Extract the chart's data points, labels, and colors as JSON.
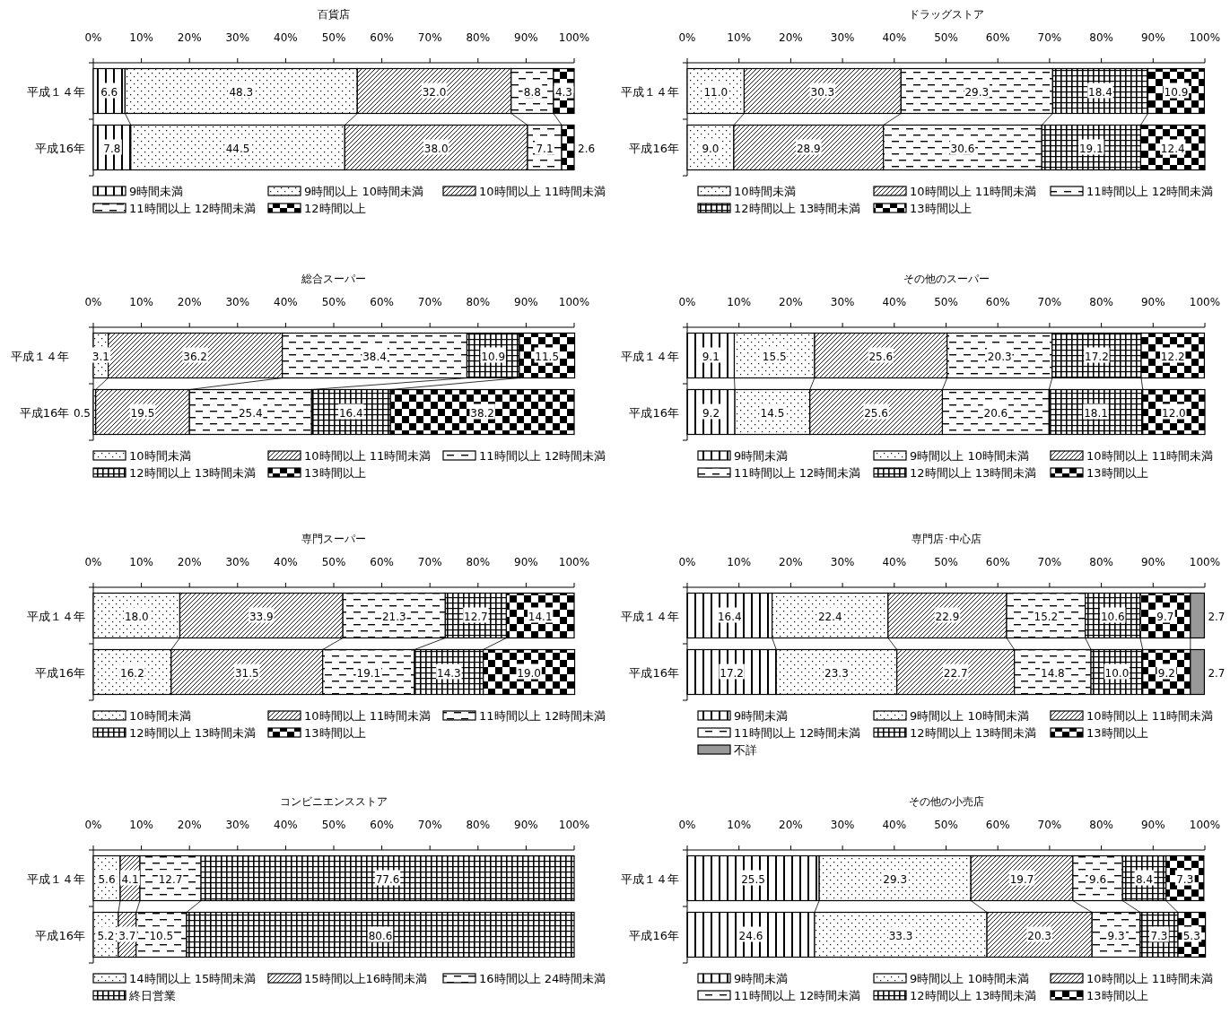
{
  "chart_data": [
    {
      "type": "bar",
      "orientation": "horizontal",
      "stacked": true,
      "title": "百貨店",
      "categories": [
        "平成１４年",
        "平成16年"
      ],
      "xlim": [
        0,
        100
      ],
      "xticks": [
        {
          "value": 0,
          "label": "0%"
        },
        {
          "value": 10,
          "label": "10%"
        },
        {
          "value": 20,
          "label": "20%"
        },
        {
          "value": 30,
          "label": "30%"
        },
        {
          "value": 40,
          "label": "40%"
        },
        {
          "value": 50,
          "label": "50%"
        },
        {
          "value": 60,
          "label": "60%"
        },
        {
          "value": 70,
          "label": "70%"
        },
        {
          "value": 80,
          "label": "80%"
        },
        {
          "value": 90,
          "label": "90%"
        },
        {
          "value": 100,
          "label": "100%"
        }
      ],
      "legend": "bottom",
      "series": [
        {
          "name": "9時間未満",
          "color": "#000000",
          "values": [
            6.6,
            7.8
          ],
          "value_labels": [
            "6.6",
            "7.8"
          ]
        },
        {
          "name": "9時間以上 10時間未満",
          "color": "#000000",
          "values": [
            48.3,
            44.5
          ],
          "value_labels": [
            "48.3",
            "44.5"
          ]
        },
        {
          "name": "10時間以上 11時間未満",
          "color": "#000000",
          "values": [
            32.0,
            38.0
          ],
          "value_labels": [
            "32.0",
            "38.0"
          ]
        },
        {
          "name": "11時間以上 12時間未満",
          "color": "#000000",
          "values": [
            8.8,
            7.1
          ],
          "value_labels": [
            "8.8",
            "7.1"
          ]
        },
        {
          "name": "12時間以上",
          "color": "#000000",
          "values": [
            4.3,
            2.6
          ],
          "value_labels": [
            "4.3",
            "2.6"
          ]
        }
      ]
    },
    {
      "type": "bar",
      "orientation": "horizontal",
      "stacked": true,
      "title": "ドラッグストア",
      "categories": [
        "平成１４年",
        "平成16年"
      ],
      "xlim": [
        0,
        100
      ],
      "xticks": [
        {
          "value": 0,
          "label": "0%"
        },
        {
          "value": 10,
          "label": "10%"
        },
        {
          "value": 20,
          "label": "20%"
        },
        {
          "value": 30,
          "label": "30%"
        },
        {
          "value": 40,
          "label": "40%"
        },
        {
          "value": 50,
          "label": "50%"
        },
        {
          "value": 60,
          "label": "60%"
        },
        {
          "value": 70,
          "label": "70%"
        },
        {
          "value": 80,
          "label": "80%"
        },
        {
          "value": 90,
          "label": "90%"
        },
        {
          "value": 100,
          "label": "100%"
        }
      ],
      "legend": "bottom",
      "series": [
        {
          "name": "10時間未満",
          "color": "#000000",
          "values": [
            11.0,
            9.0
          ],
          "value_labels": [
            "11.0",
            "9.0"
          ]
        },
        {
          "name": "10時間以上 11時間未満",
          "color": "#000000",
          "values": [
            30.3,
            28.9
          ],
          "value_labels": [
            "30.3",
            "28.9"
          ]
        },
        {
          "name": "11時間以上 12時間未満",
          "color": "#000000",
          "values": [
            29.3,
            30.6
          ],
          "value_labels": [
            "29.3",
            "30.6"
          ]
        },
        {
          "name": "12時間以上 13時間未満",
          "color": "#000000",
          "values": [
            18.4,
            19.1
          ],
          "value_labels": [
            "18.4",
            "19.1"
          ]
        },
        {
          "name": "13時間以上",
          "color": "#000000",
          "values": [
            10.9,
            12.4
          ],
          "value_labels": [
            "10.9",
            "12.4"
          ]
        }
      ]
    },
    {
      "type": "bar",
      "orientation": "horizontal",
      "stacked": true,
      "title": "総合スーパー",
      "categories": [
        "平成１４年",
        "平成16年"
      ],
      "xlim": [
        0,
        100
      ],
      "xticks": [
        {
          "value": 0,
          "label": "0%"
        },
        {
          "value": 10,
          "label": "10%"
        },
        {
          "value": 20,
          "label": "20%"
        },
        {
          "value": 30,
          "label": "30%"
        },
        {
          "value": 40,
          "label": "40%"
        },
        {
          "value": 50,
          "label": "50%"
        },
        {
          "value": 60,
          "label": "60%"
        },
        {
          "value": 70,
          "label": "70%"
        },
        {
          "value": 80,
          "label": "80%"
        },
        {
          "value": 90,
          "label": "90%"
        },
        {
          "value": 100,
          "label": "100%"
        }
      ],
      "legend": "bottom",
      "series": [
        {
          "name": "10時間未満",
          "color": "#000000",
          "values": [
            3.1,
            0.5
          ],
          "value_labels": [
            "3.1",
            "0.5"
          ]
        },
        {
          "name": "10時間以上 11時間未満",
          "color": "#000000",
          "values": [
            36.2,
            19.5
          ],
          "value_labels": [
            "36.2",
            "19.5"
          ]
        },
        {
          "name": "11時間以上 12時間未満",
          "color": "#000000",
          "values": [
            38.4,
            25.4
          ],
          "value_labels": [
            "38.4",
            "25.4"
          ]
        },
        {
          "name": "12時間以上 13時間未満",
          "color": "#000000",
          "values": [
            10.9,
            16.4
          ],
          "value_labels": [
            "10.9",
            "16.4"
          ]
        },
        {
          "name": "13時間以上",
          "color": "#000000",
          "values": [
            11.5,
            38.2
          ],
          "value_labels": [
            "11.5",
            "38.2"
          ]
        }
      ]
    },
    {
      "type": "bar",
      "orientation": "horizontal",
      "stacked": true,
      "title": "その他のスーパー",
      "categories": [
        "平成１４年",
        "平成16年"
      ],
      "xlim": [
        0,
        100
      ],
      "xticks": [
        {
          "value": 0,
          "label": "0%"
        },
        {
          "value": 10,
          "label": "10%"
        },
        {
          "value": 20,
          "label": "20%"
        },
        {
          "value": 30,
          "label": "30%"
        },
        {
          "value": 40,
          "label": "40%"
        },
        {
          "value": 50,
          "label": "50%"
        },
        {
          "value": 60,
          "label": "60%"
        },
        {
          "value": 70,
          "label": "70%"
        },
        {
          "value": 80,
          "label": "80%"
        },
        {
          "value": 90,
          "label": "90%"
        },
        {
          "value": 100,
          "label": "100%"
        }
      ],
      "legend": "bottom",
      "series": [
        {
          "name": "9時間未満",
          "color": "#000000",
          "values": [
            9.1,
            9.2
          ],
          "value_labels": [
            "9.1",
            "9.2"
          ]
        },
        {
          "name": "9時間以上 10時間未満",
          "color": "#000000",
          "values": [
            15.5,
            14.5
          ],
          "value_labels": [
            "15.5",
            "14.5"
          ]
        },
        {
          "name": "10時間以上 11時間未満",
          "color": "#000000",
          "values": [
            25.6,
            25.6
          ],
          "value_labels": [
            "25.6",
            "25.6"
          ]
        },
        {
          "name": "11時間以上 12時間未満",
          "color": "#000000",
          "values": [
            20.3,
            20.6
          ],
          "value_labels": [
            "20.3",
            "20.6"
          ]
        },
        {
          "name": "12時間以上 13時間未満",
          "color": "#000000",
          "values": [
            17.2,
            18.1
          ],
          "value_labels": [
            "17.2",
            "18.1"
          ]
        },
        {
          "name": "13時間以上",
          "color": "#000000",
          "values": [
            12.2,
            12.0
          ],
          "value_labels": [
            "12.2",
            "12.0"
          ]
        }
      ]
    },
    {
      "type": "bar",
      "orientation": "horizontal",
      "stacked": true,
      "title": "専門スーパー",
      "categories": [
        "平成１４年",
        "平成16年"
      ],
      "xlim": [
        0,
        100
      ],
      "xticks": [
        {
          "value": 0,
          "label": "0%"
        },
        {
          "value": 10,
          "label": "10%"
        },
        {
          "value": 20,
          "label": "20%"
        },
        {
          "value": 30,
          "label": "30%"
        },
        {
          "value": 40,
          "label": "40%"
        },
        {
          "value": 50,
          "label": "50%"
        },
        {
          "value": 60,
          "label": "60%"
        },
        {
          "value": 70,
          "label": "70%"
        },
        {
          "value": 80,
          "label": "80%"
        },
        {
          "value": 90,
          "label": "90%"
        },
        {
          "value": 100,
          "label": "100%"
        }
      ],
      "legend": "bottom",
      "series": [
        {
          "name": "10時間未満",
          "color": "#000000",
          "values": [
            18.0,
            16.2
          ],
          "value_labels": [
            "18.0",
            "16.2"
          ]
        },
        {
          "name": "10時間以上 11時間未満",
          "color": "#000000",
          "values": [
            33.9,
            31.5
          ],
          "value_labels": [
            "33.9",
            "31.5"
          ]
        },
        {
          "name": "11時間以上 12時間未満",
          "color": "#000000",
          "values": [
            21.3,
            19.1
          ],
          "value_labels": [
            "21.3",
            "19.1"
          ]
        },
        {
          "name": "12時間以上 13時間未満",
          "color": "#000000",
          "values": [
            12.7,
            14.3
          ],
          "value_labels": [
            "12.7",
            "14.3"
          ]
        },
        {
          "name": "13時間以上",
          "color": "#000000",
          "values": [
            14.1,
            19.0
          ],
          "value_labels": [
            "14.1",
            "19.0"
          ]
        }
      ]
    },
    {
      "type": "bar",
      "orientation": "horizontal",
      "stacked": true,
      "title": "専門店･中心店",
      "categories": [
        "平成１４年",
        "平成16年"
      ],
      "xlim": [
        0,
        100
      ],
      "xticks": [
        {
          "value": 0,
          "label": "0%"
        },
        {
          "value": 10,
          "label": "10%"
        },
        {
          "value": 20,
          "label": "20%"
        },
        {
          "value": 30,
          "label": "30%"
        },
        {
          "value": 40,
          "label": "40%"
        },
        {
          "value": 50,
          "label": "50%"
        },
        {
          "value": 60,
          "label": "60%"
        },
        {
          "value": 70,
          "label": "70%"
        },
        {
          "value": 80,
          "label": "80%"
        },
        {
          "value": 90,
          "label": "90%"
        },
        {
          "value": 100,
          "label": "100%"
        }
      ],
      "legend": "bottom",
      "series": [
        {
          "name": "9時間未満",
          "color": "#000000",
          "values": [
            16.4,
            17.2
          ],
          "value_labels": [
            "16.4",
            "17.2"
          ]
        },
        {
          "name": "9時間以上 10時間未満",
          "color": "#000000",
          "values": [
            22.4,
            23.3
          ],
          "value_labels": [
            "22.4",
            "23.3"
          ]
        },
        {
          "name": "10時間以上 11時間未満",
          "color": "#000000",
          "values": [
            22.9,
            22.7
          ],
          "value_labels": [
            "22.9",
            "22.7"
          ]
        },
        {
          "name": "11時間以上 12時間未満",
          "color": "#000000",
          "values": [
            15.2,
            14.8
          ],
          "value_labels": [
            "15.2",
            "14.8"
          ]
        },
        {
          "name": "12時間以上 13時間未満",
          "color": "#000000",
          "values": [
            10.6,
            10.0
          ],
          "value_labels": [
            "10.6",
            "10.0"
          ]
        },
        {
          "name": "13時間以上",
          "color": "#000000",
          "values": [
            9.7,
            9.2
          ],
          "value_labels": [
            "9.7",
            "9.2"
          ]
        },
        {
          "name": "不詳",
          "color": "#999999",
          "values": [
            2.7,
            2.7
          ],
          "value_labels": [
            "2.7",
            "2.7"
          ]
        }
      ]
    },
    {
      "type": "bar",
      "orientation": "horizontal",
      "stacked": true,
      "title": "コンビニエンスストア",
      "categories": [
        "平成１４年",
        "平成16年"
      ],
      "xlim": [
        0,
        100
      ],
      "xticks": [
        {
          "value": 0,
          "label": "0%"
        },
        {
          "value": 10,
          "label": "10%"
        },
        {
          "value": 20,
          "label": "20%"
        },
        {
          "value": 30,
          "label": "30%"
        },
        {
          "value": 40,
          "label": "40%"
        },
        {
          "value": 50,
          "label": "50%"
        },
        {
          "value": 60,
          "label": "60%"
        },
        {
          "value": 70,
          "label": "70%"
        },
        {
          "value": 80,
          "label": "80%"
        },
        {
          "value": 90,
          "label": "90%"
        },
        {
          "value": 100,
          "label": "100%"
        }
      ],
      "legend": "bottom",
      "series": [
        {
          "name": "14時間以上 15時間未満",
          "color": "#000000",
          "values": [
            5.6,
            5.2
          ],
          "value_labels": [
            "5.6",
            "5.2"
          ]
        },
        {
          "name": "15時間以上16時間未満",
          "color": "#000000",
          "values": [
            4.1,
            3.7
          ],
          "value_labels": [
            "4.1",
            "3.7"
          ]
        },
        {
          "name": "16時間以上 24時間未満",
          "color": "#000000",
          "values": [
            12.7,
            10.5
          ],
          "value_labels": [
            "12.7",
            "10.5"
          ]
        },
        {
          "name": "終日営業",
          "color": "#000000",
          "values": [
            77.6,
            80.6
          ],
          "value_labels": [
            "77.6",
            "80.6"
          ]
        }
      ]
    },
    {
      "type": "bar",
      "orientation": "horizontal",
      "stacked": true,
      "title": "その他の小売店",
      "categories": [
        "平成１４年",
        "平成16年"
      ],
      "xlim": [
        0,
        100
      ],
      "xticks": [
        {
          "value": 0,
          "label": "0%"
        },
        {
          "value": 10,
          "label": "10%"
        },
        {
          "value": 20,
          "label": "20%"
        },
        {
          "value": 30,
          "label": "30%"
        },
        {
          "value": 40,
          "label": "40%"
        },
        {
          "value": 50,
          "label": "50%"
        },
        {
          "value": 60,
          "label": "60%"
        },
        {
          "value": 70,
          "label": "70%"
        },
        {
          "value": 80,
          "label": "80%"
        },
        {
          "value": 90,
          "label": "90%"
        },
        {
          "value": 100,
          "label": "100%"
        }
      ],
      "legend": "bottom",
      "series": [
        {
          "name": "9時間未満",
          "color": "#000000",
          "values": [
            25.5,
            24.6
          ],
          "value_labels": [
            "25.5",
            "24.6"
          ]
        },
        {
          "name": "9時間以上 10時間未満",
          "color": "#000000",
          "values": [
            29.3,
            33.3
          ],
          "value_labels": [
            "29.3",
            "33.3"
          ]
        },
        {
          "name": "10時間以上 11時間未満",
          "color": "#000000",
          "values": [
            19.7,
            20.3
          ],
          "value_labels": [
            "19.7",
            "20.3"
          ]
        },
        {
          "name": "11時間以上 12時間未満",
          "color": "#000000",
          "values": [
            9.6,
            9.3
          ],
          "value_labels": [
            "9.6",
            "9.3"
          ]
        },
        {
          "name": "12時間以上 13時間未満",
          "color": "#000000",
          "values": [
            8.4,
            7.3
          ],
          "value_labels": [
            "8.4",
            "7.3"
          ]
        },
        {
          "name": "13時間以上",
          "color": "#000000",
          "values": [
            7.3,
            5.3
          ],
          "value_labels": [
            "7.3",
            "5.3"
          ]
        }
      ]
    }
  ]
}
